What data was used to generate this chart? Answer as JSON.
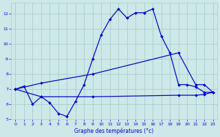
{
  "title": "Graphe des températures (°c)",
  "bg_color": "#cce8e8",
  "grid_color": "#aacccc",
  "line_color": "#0000cc",
  "xlim": [
    -0.5,
    23.5
  ],
  "ylim": [
    5.0,
    12.7
  ],
  "yticks": [
    5,
    6,
    7,
    8,
    9,
    10,
    11,
    12
  ],
  "xticks": [
    0,
    1,
    2,
    3,
    4,
    5,
    6,
    7,
    8,
    9,
    10,
    11,
    12,
    13,
    14,
    15,
    16,
    17,
    18,
    19,
    20,
    21,
    22,
    23
  ],
  "series_jagged_x": [
    0,
    1,
    2,
    3,
    4,
    5,
    6,
    7,
    8,
    9,
    10,
    11,
    12,
    13,
    14,
    15,
    16,
    17,
    18,
    19,
    20,
    21,
    22,
    23
  ],
  "series_jagged_y": [
    7.0,
    7.2,
    6.0,
    6.5,
    6.1,
    5.4,
    5.2,
    6.2,
    7.3,
    9.0,
    10.6,
    11.6,
    12.3,
    11.7,
    12.05,
    12.05,
    12.3,
    10.5,
    9.4,
    7.3,
    7.3,
    7.15,
    6.8,
    6.8
  ],
  "series_max_x": [
    0,
    3,
    9,
    19,
    21,
    22,
    23
  ],
  "series_max_y": [
    7.0,
    7.4,
    8.0,
    9.4,
    7.3,
    7.3,
    6.8
  ],
  "series_min_x": [
    0,
    3,
    9,
    19,
    21,
    22,
    23
  ],
  "series_min_y": [
    7.0,
    6.5,
    6.5,
    6.6,
    6.6,
    6.65,
    6.8
  ]
}
